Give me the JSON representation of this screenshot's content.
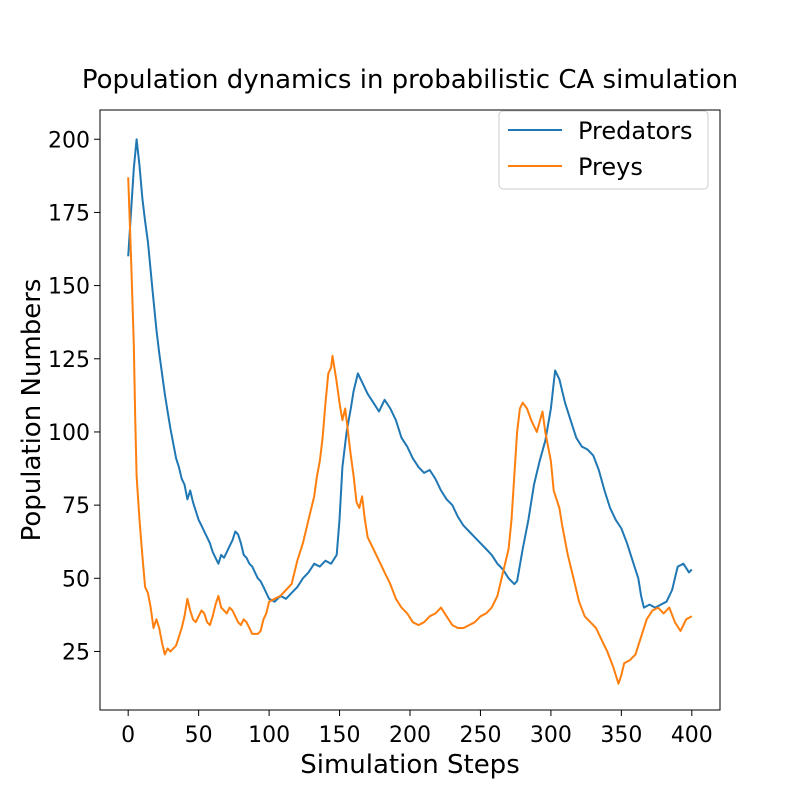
{
  "chart_data": {
    "type": "line",
    "title": "Population dynamics in probabilistic CA simulation",
    "xlabel": "Simulation Steps",
    "ylabel": "Population Numbers",
    "xlim": [
      -20,
      420
    ],
    "ylim": [
      5,
      210
    ],
    "xticks": [
      0,
      50,
      100,
      150,
      200,
      250,
      300,
      350,
      400
    ],
    "yticks": [
      25,
      50,
      75,
      100,
      125,
      150,
      175,
      200
    ],
    "grid": false,
    "legend": "top-right",
    "series": [
      {
        "name": "Predators",
        "color": "#1f77b4",
        "points": [
          [
            0,
            160
          ],
          [
            2,
            175
          ],
          [
            4,
            190
          ],
          [
            6,
            200
          ],
          [
            8,
            191
          ],
          [
            10,
            180
          ],
          [
            12,
            172
          ],
          [
            14,
            165
          ],
          [
            16,
            155
          ],
          [
            18,
            145
          ],
          [
            20,
            135
          ],
          [
            22,
            127
          ],
          [
            24,
            120
          ],
          [
            26,
            113
          ],
          [
            28,
            107
          ],
          [
            30,
            101
          ],
          [
            32,
            96
          ],
          [
            34,
            91
          ],
          [
            36,
            88
          ],
          [
            38,
            84
          ],
          [
            40,
            82
          ],
          [
            42,
            77
          ],
          [
            44,
            80
          ],
          [
            46,
            76
          ],
          [
            48,
            73
          ],
          [
            50,
            70
          ],
          [
            52,
            68
          ],
          [
            54,
            66
          ],
          [
            56,
            64
          ],
          [
            58,
            62
          ],
          [
            60,
            59
          ],
          [
            62,
            57
          ],
          [
            64,
            55
          ],
          [
            66,
            58
          ],
          [
            68,
            57
          ],
          [
            70,
            59
          ],
          [
            72,
            61
          ],
          [
            74,
            63
          ],
          [
            76,
            66
          ],
          [
            78,
            65
          ],
          [
            80,
            62
          ],
          [
            82,
            58
          ],
          [
            84,
            57
          ],
          [
            86,
            55
          ],
          [
            88,
            54
          ],
          [
            90,
            52
          ],
          [
            92,
            50
          ],
          [
            94,
            49
          ],
          [
            96,
            47
          ],
          [
            98,
            45
          ],
          [
            100,
            43
          ],
          [
            104,
            42
          ],
          [
            108,
            44
          ],
          [
            112,
            43
          ],
          [
            116,
            45
          ],
          [
            120,
            47
          ],
          [
            124,
            50
          ],
          [
            128,
            52
          ],
          [
            132,
            55
          ],
          [
            136,
            54
          ],
          [
            140,
            56
          ],
          [
            144,
            55
          ],
          [
            148,
            58
          ],
          [
            150,
            70
          ],
          [
            152,
            88
          ],
          [
            155,
            100
          ],
          [
            158,
            108
          ],
          [
            160,
            114
          ],
          [
            163,
            120
          ],
          [
            166,
            117
          ],
          [
            170,
            113
          ],
          [
            174,
            110
          ],
          [
            178,
            107
          ],
          [
            182,
            111
          ],
          [
            186,
            108
          ],
          [
            190,
            104
          ],
          [
            194,
            98
          ],
          [
            198,
            95
          ],
          [
            202,
            91
          ],
          [
            206,
            88
          ],
          [
            210,
            86
          ],
          [
            214,
            87
          ],
          [
            218,
            84
          ],
          [
            222,
            80
          ],
          [
            226,
            77
          ],
          [
            230,
            75
          ],
          [
            234,
            71
          ],
          [
            238,
            68
          ],
          [
            242,
            66
          ],
          [
            246,
            64
          ],
          [
            250,
            62
          ],
          [
            254,
            60
          ],
          [
            258,
            58
          ],
          [
            262,
            55
          ],
          [
            266,
            53
          ],
          [
            270,
            50
          ],
          [
            274,
            48
          ],
          [
            276,
            49
          ],
          [
            280,
            60
          ],
          [
            284,
            70
          ],
          [
            288,
            82
          ],
          [
            292,
            90
          ],
          [
            296,
            97
          ],
          [
            300,
            108
          ],
          [
            303,
            121
          ],
          [
            306,
            118
          ],
          [
            310,
            110
          ],
          [
            314,
            104
          ],
          [
            318,
            98
          ],
          [
            322,
            95
          ],
          [
            326,
            94
          ],
          [
            330,
            92
          ],
          [
            334,
            87
          ],
          [
            338,
            80
          ],
          [
            342,
            74
          ],
          [
            346,
            70
          ],
          [
            350,
            67
          ],
          [
            354,
            62
          ],
          [
            358,
            56
          ],
          [
            362,
            50
          ],
          [
            364,
            44
          ],
          [
            366,
            40
          ],
          [
            370,
            41
          ],
          [
            374,
            40
          ],
          [
            378,
            41
          ],
          [
            382,
            42
          ],
          [
            386,
            46
          ],
          [
            390,
            54
          ],
          [
            394,
            55
          ],
          [
            398,
            52
          ],
          [
            400,
            53
          ]
        ]
      },
      {
        "name": "Preys",
        "color": "#ff7f0e",
        "points": [
          [
            0,
            187
          ],
          [
            2,
            160
          ],
          [
            4,
            130
          ],
          [
            5,
            105
          ],
          [
            6,
            85
          ],
          [
            8,
            70
          ],
          [
            10,
            58
          ],
          [
            12,
            47
          ],
          [
            14,
            45
          ],
          [
            16,
            40
          ],
          [
            18,
            33
          ],
          [
            20,
            36
          ],
          [
            22,
            33
          ],
          [
            24,
            28
          ],
          [
            26,
            24
          ],
          [
            28,
            26
          ],
          [
            30,
            25
          ],
          [
            32,
            26
          ],
          [
            34,
            27
          ],
          [
            36,
            30
          ],
          [
            38,
            33
          ],
          [
            40,
            37
          ],
          [
            42,
            43
          ],
          [
            44,
            39
          ],
          [
            46,
            36
          ],
          [
            48,
            35
          ],
          [
            50,
            37
          ],
          [
            52,
            39
          ],
          [
            54,
            38
          ],
          [
            56,
            35
          ],
          [
            58,
            34
          ],
          [
            60,
            37
          ],
          [
            62,
            41
          ],
          [
            64,
            44
          ],
          [
            66,
            40
          ],
          [
            68,
            39
          ],
          [
            70,
            38
          ],
          [
            72,
            40
          ],
          [
            74,
            39
          ],
          [
            76,
            37
          ],
          [
            78,
            35
          ],
          [
            80,
            34
          ],
          [
            82,
            36
          ],
          [
            84,
            35
          ],
          [
            86,
            33
          ],
          [
            88,
            31
          ],
          [
            90,
            31
          ],
          [
            92,
            31
          ],
          [
            94,
            32
          ],
          [
            96,
            36
          ],
          [
            98,
            38
          ],
          [
            100,
            42
          ],
          [
            104,
            43
          ],
          [
            108,
            44
          ],
          [
            112,
            46
          ],
          [
            116,
            48
          ],
          [
            120,
            56
          ],
          [
            124,
            62
          ],
          [
            128,
            70
          ],
          [
            132,
            78
          ],
          [
            134,
            85
          ],
          [
            136,
            90
          ],
          [
            138,
            98
          ],
          [
            140,
            110
          ],
          [
            142,
            120
          ],
          [
            144,
            122
          ],
          [
            145,
            126
          ],
          [
            148,
            117
          ],
          [
            150,
            110
          ],
          [
            152,
            104
          ],
          [
            154,
            108
          ],
          [
            156,
            100
          ],
          [
            158,
            92
          ],
          [
            160,
            85
          ],
          [
            162,
            76
          ],
          [
            164,
            74
          ],
          [
            166,
            78
          ],
          [
            168,
            70
          ],
          [
            170,
            64
          ],
          [
            174,
            60
          ],
          [
            178,
            56
          ],
          [
            182,
            52
          ],
          [
            186,
            48
          ],
          [
            190,
            43
          ],
          [
            194,
            40
          ],
          [
            198,
            38
          ],
          [
            202,
            35
          ],
          [
            206,
            34
          ],
          [
            210,
            35
          ],
          [
            214,
            37
          ],
          [
            218,
            38
          ],
          [
            222,
            40
          ],
          [
            226,
            37
          ],
          [
            230,
            34
          ],
          [
            234,
            33
          ],
          [
            238,
            33
          ],
          [
            242,
            34
          ],
          [
            246,
            35
          ],
          [
            250,
            37
          ],
          [
            254,
            38
          ],
          [
            258,
            40
          ],
          [
            262,
            44
          ],
          [
            266,
            52
          ],
          [
            270,
            60
          ],
          [
            272,
            70
          ],
          [
            274,
            85
          ],
          [
            276,
            100
          ],
          [
            278,
            108
          ],
          [
            280,
            110
          ],
          [
            283,
            108
          ],
          [
            286,
            104
          ],
          [
            290,
            100
          ],
          [
            294,
            107
          ],
          [
            296,
            100
          ],
          [
            300,
            90
          ],
          [
            302,
            80
          ],
          [
            304,
            77
          ],
          [
            306,
            74
          ],
          [
            308,
            68
          ],
          [
            312,
            58
          ],
          [
            316,
            50
          ],
          [
            320,
            42
          ],
          [
            324,
            37
          ],
          [
            328,
            35
          ],
          [
            332,
            33
          ],
          [
            336,
            29
          ],
          [
            340,
            25
          ],
          [
            344,
            20
          ],
          [
            348,
            14
          ],
          [
            350,
            17
          ],
          [
            352,
            21
          ],
          [
            356,
            22
          ],
          [
            360,
            24
          ],
          [
            364,
            30
          ],
          [
            368,
            36
          ],
          [
            372,
            39
          ],
          [
            376,
            40
          ],
          [
            380,
            38
          ],
          [
            384,
            40
          ],
          [
            388,
            35
          ],
          [
            392,
            32
          ],
          [
            396,
            36
          ],
          [
            400,
            37
          ]
        ]
      }
    ]
  }
}
